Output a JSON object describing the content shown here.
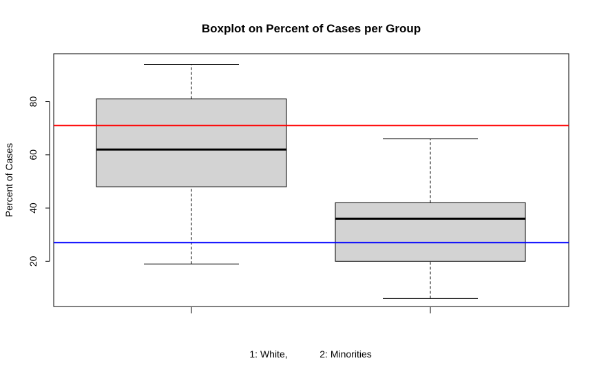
{
  "chart_data": {
    "type": "box",
    "title": "Boxplot on Percent of Cases per Group",
    "ylabel": "Percent of Cases",
    "xlabel_parts": [
      "1: White,",
      "2: Minorities"
    ],
    "ylim": [
      3,
      98
    ],
    "yticks": [
      20,
      40,
      60,
      80
    ],
    "show_x_tick_labels": false,
    "boxes": [
      {
        "whisker_low": 19,
        "q1": 48,
        "median": 62,
        "q3": 81,
        "whisker_high": 94
      },
      {
        "whisker_low": 6,
        "q1": 20,
        "median": 36,
        "q3": 42,
        "whisker_high": 66
      }
    ],
    "box_fill": "#d3d3d3",
    "hlines": [
      {
        "y": 71,
        "color": "#ff0000"
      },
      {
        "y": 27,
        "color": "#0000ff"
      }
    ],
    "grid": false
  }
}
